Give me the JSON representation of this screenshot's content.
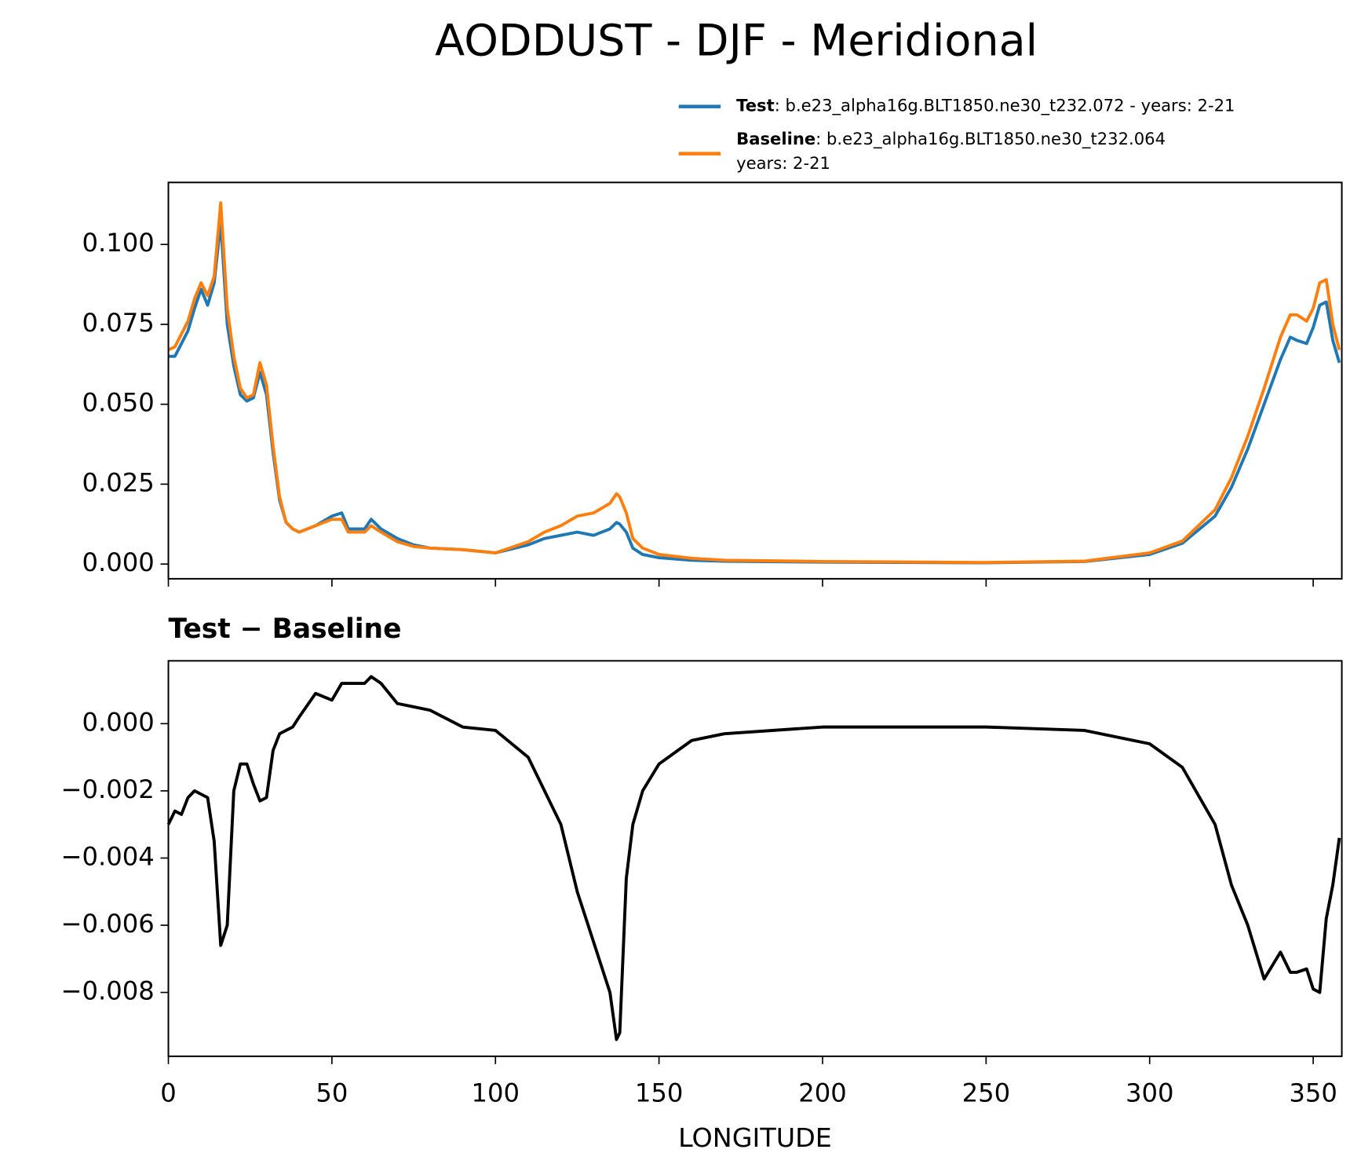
{
  "chart_data": [
    {
      "type": "line",
      "title": "AODDUST - DJF - Meridional",
      "x": [
        0,
        2,
        4,
        6,
        8,
        10,
        12,
        14,
        16,
        18,
        20,
        22,
        24,
        26,
        28,
        30,
        32,
        34,
        36,
        38,
        40,
        45,
        50,
        53,
        55,
        60,
        62,
        65,
        70,
        75,
        80,
        90,
        100,
        110,
        115,
        120,
        125,
        130,
        135,
        137,
        138,
        140,
        142,
        145,
        150,
        160,
        170,
        200,
        250,
        280,
        300,
        310,
        320,
        325,
        330,
        335,
        340,
        343,
        345,
        348,
        350,
        352,
        354,
        356,
        358
      ],
      "series": [
        {
          "name": "Test",
          "description": [
            ": b.e23_alpha16g.BLT1850.ne30_t232.072 - years: 2-21"
          ],
          "color": "#1f77b4",
          "values": [
            0.065,
            0.065,
            0.069,
            0.073,
            0.08,
            0.086,
            0.081,
            0.088,
            0.107,
            0.075,
            0.062,
            0.053,
            0.051,
            0.052,
            0.06,
            0.053,
            0.035,
            0.02,
            0.013,
            0.011,
            0.01,
            0.012,
            0.015,
            0.016,
            0.011,
            0.011,
            0.014,
            0.011,
            0.008,
            0.006,
            0.005,
            0.0045,
            0.0035,
            0.006,
            0.008,
            0.009,
            0.01,
            0.009,
            0.011,
            0.013,
            0.0125,
            0.01,
            0.005,
            0.003,
            0.002,
            0.0012,
            0.0009,
            0.0006,
            0.0004,
            0.0008,
            0.003,
            0.0065,
            0.015,
            0.024,
            0.036,
            0.05,
            0.064,
            0.071,
            0.07,
            0.069,
            0.074,
            0.081,
            0.082,
            0.07,
            0.063
          ]
        },
        {
          "name": "Baseline",
          "description": [
            ": b.e23_alpha16g.BLT1850.ne30_t232.064",
            "years: 2-21"
          ],
          "color": "#ff7f0e",
          "values": [
            0.067,
            0.068,
            0.072,
            0.076,
            0.083,
            0.088,
            0.084,
            0.09,
            0.113,
            0.08,
            0.065,
            0.055,
            0.052,
            0.053,
            0.063,
            0.056,
            0.037,
            0.021,
            0.013,
            0.011,
            0.01,
            0.012,
            0.014,
            0.014,
            0.01,
            0.01,
            0.012,
            0.01,
            0.007,
            0.0055,
            0.005,
            0.0045,
            0.0035,
            0.007,
            0.01,
            0.012,
            0.015,
            0.016,
            0.019,
            0.022,
            0.021,
            0.016,
            0.008,
            0.005,
            0.003,
            0.0018,
            0.0012,
            0.0008,
            0.0005,
            0.0009,
            0.0035,
            0.0072,
            0.017,
            0.027,
            0.04,
            0.055,
            0.071,
            0.078,
            0.078,
            0.076,
            0.08,
            0.088,
            0.089,
            0.075,
            0.067
          ]
        }
      ],
      "xlim": [
        0,
        358.75
      ],
      "xticks": [
        0,
        50,
        100,
        150,
        200,
        250,
        300,
        350
      ],
      "ylim": [
        -0.0046,
        0.1194
      ],
      "yticks": [
        {
          "value": 0,
          "label": "0.000"
        },
        {
          "value": 0.025,
          "label": "0.025"
        },
        {
          "value": 0.05,
          "label": "0.050"
        },
        {
          "value": 0.075,
          "label": "0.075"
        },
        {
          "value": 0.1,
          "label": "0.100"
        }
      ],
      "legend": "upper right"
    },
    {
      "type": "line",
      "title": "Test − Baseline",
      "xlabel": "LONGITUDE",
      "x": [
        0,
        2,
        4,
        6,
        8,
        10,
        12,
        14,
        16,
        18,
        20,
        22,
        24,
        26,
        28,
        30,
        32,
        34,
        36,
        38,
        40,
        45,
        50,
        53,
        55,
        60,
        62,
        65,
        70,
        75,
        80,
        90,
        100,
        110,
        115,
        120,
        125,
        130,
        135,
        137,
        138,
        140,
        142,
        145,
        150,
        160,
        170,
        200,
        250,
        280,
        300,
        310,
        320,
        325,
        330,
        335,
        340,
        343,
        345,
        348,
        350,
        352,
        354,
        356,
        358
      ],
      "series": [
        {
          "color": "#000000",
          "values": [
            -0.003,
            -0.0026,
            -0.0027,
            -0.0022,
            -0.002,
            -0.0021,
            -0.0022,
            -0.0035,
            -0.0066,
            -0.006,
            -0.002,
            -0.0012,
            -0.0012,
            -0.0018,
            -0.0023,
            -0.0022,
            -0.0008,
            -0.0003,
            -0.0002,
            -0.0001,
            0.0002,
            0.0009,
            0.0007,
            0.0012,
            0.0012,
            0.0012,
            0.0014,
            0.0012,
            0.0006,
            0.0005,
            0.0004,
            -0.0001,
            -0.0002,
            -0.001,
            -0.002,
            -0.003,
            -0.005,
            -0.0065,
            -0.008,
            -0.0094,
            -0.0092,
            -0.0046,
            -0.003,
            -0.002,
            -0.0012,
            -0.0005,
            -0.0003,
            -0.0001,
            -0.0001,
            -0.0002,
            -0.0006,
            -0.0013,
            -0.003,
            -0.0048,
            -0.006,
            -0.0076,
            -0.0068,
            -0.0074,
            -0.0074,
            -0.0073,
            -0.0079,
            -0.008,
            -0.0058,
            -0.0048,
            -0.0034
          ]
        }
      ],
      "xlim": [
        0,
        358.75
      ],
      "xticks": [
        0,
        50,
        100,
        150,
        200,
        250,
        300,
        350
      ],
      "ylim": [
        -0.0099,
        0.00187
      ],
      "yticks": [
        {
          "value": 0,
          "label": "0.000"
        },
        {
          "value": -0.002,
          "label": "−0.002"
        },
        {
          "value": -0.004,
          "label": "−0.004"
        },
        {
          "value": -0.006,
          "label": "−0.006"
        },
        {
          "value": -0.008,
          "label": "−0.008"
        }
      ]
    }
  ]
}
